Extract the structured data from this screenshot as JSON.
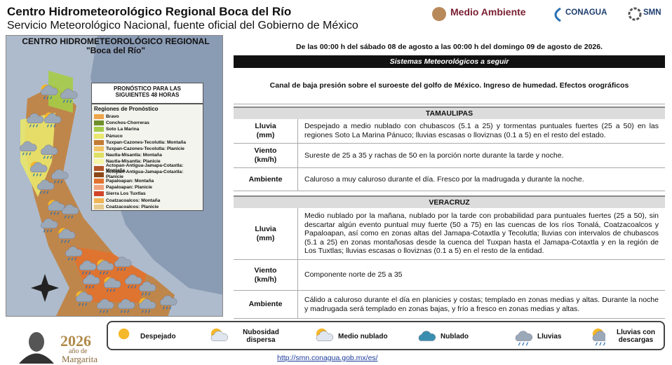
{
  "header": {
    "title": "Centro Hidrometeorológico Regional Boca del Río",
    "subtitle": "Servicio Meteorológico Nacional, fuente oficial del Gobierno de México",
    "logos": [
      "Medio Ambiente",
      "CONAGUA",
      "SMN"
    ]
  },
  "map": {
    "title": "CENTRO HIDROMETEOROLÓGICO REGIONAL",
    "subtitle": "\"Boca del Río\"",
    "forecast_box": "PRONÓSTICO PARA LAS SIGUIENTES 48 HORAS",
    "regions_heading": "Regiones de Pronóstico",
    "regions": [
      {
        "name": "Bravo",
        "color": "#eea64a"
      },
      {
        "name": "Conchos-Chorreras",
        "color": "#6f8f2a"
      },
      {
        "name": "Soto La Marina",
        "color": "#a6cc48"
      },
      {
        "name": "Pánuco",
        "color": "#e9e76c"
      },
      {
        "name": "Tuxpan-Cazones-Tecolutla: Montaña",
        "color": "#c27c34"
      },
      {
        "name": "Tuxpan-Cazones-Tecolutla: Planicie",
        "color": "#f2c464"
      },
      {
        "name": "Nautla-Misantla: Montaña",
        "color": "#dfe062"
      },
      {
        "name": "Nautla-Misantla: Planicie",
        "color": "#f7f6a6"
      },
      {
        "name": "Actopan-Antigua-Jamapa-Cotaxtla: Montaña",
        "color": "#b3552a"
      },
      {
        "name": "Actopan-Antigua-Jamapa-Cotaxtla: Planicie",
        "color": "#8c4718"
      },
      {
        "name": "Papaloapan: Montaña",
        "color": "#e2722e"
      },
      {
        "name": "Papaloapan: Planicie",
        "color": "#f1a47e"
      },
      {
        "name": "Sierra Los Tuxtlas",
        "color": "#d2452a"
      },
      {
        "name": "Coatzacoalcos: Montaña",
        "color": "#efb454"
      },
      {
        "name": "Coatzacoalcos: Planicie",
        "color": "#e6c98c"
      }
    ]
  },
  "period": "De las 00:00 h del sábado 08 de agosto a las 00:00 h del domingo 09 de agosto de 2026.",
  "systems": {
    "heading": "Sistemas Meteorológicos a seguir",
    "text": "Canal de baja presión sobre el suroeste del golfo de México. Ingreso de humedad. Efectos orográficos"
  },
  "states": [
    {
      "name": "TAMAULIPAS",
      "rows": [
        {
          "label": "Lluvia",
          "unit": "(mm)",
          "text": "Despejado a medio nublado con chubascos (5.1 a 25) y tormentas puntuales fuertes (25 a 50) en las regiones Soto La Marina Pánuco; lluvias escasas o lloviznas (0.1 a 5) en el resto del estado."
        },
        {
          "label": "Viento",
          "unit": "(km/h)",
          "text": "Sureste de 25 a 35 y rachas de 50 en la porción norte durante la tarde y noche."
        },
        {
          "label": "Ambiente",
          "text": "Caluroso a muy caluroso durante el día. Fresco por la madrugada y durante la noche."
        }
      ]
    },
    {
      "name": "VERACRUZ",
      "rows": [
        {
          "label": "Lluvia",
          "unit": "(mm)",
          "text": "Medio nublado por la mañana, nublado por la tarde con probabilidad para puntuales fuertes (25 a 50), sin descartar algún evento puntual muy fuerte (50 a 75) en las cuencas de los ríos Tonalá, Coatzacoalcos y Papaloapan, así como en zonas altas del Jamapa-Cotaxtla y Tecolutla; lluvias con intervalos de chubascos (5.1 a 25) en zonas montañosas desde la cuenca del Tuxpan hasta el Jamapa-Cotaxtla y en la región de Los Tuxtlas; lluvias escasas o lloviznas (0.1 a 5) en el resto de la entidad."
        },
        {
          "label": "Viento",
          "unit": "(km/h)",
          "text": "Componente norte de 25 a 35"
        },
        {
          "label": "Ambiente",
          "text": "Cálido a caluroso durante el día en planicies y costas; templado en zonas medias y altas. Durante la noche y madrugada será templado en zonas bajas, y frío a fresco en zonas medias y altas."
        }
      ]
    }
  ],
  "legend": [
    "Despejado",
    "Nubosidad dispersa",
    "Medio nublado",
    "Nublado",
    "Lluvias",
    "Lluvias con descargas"
  ],
  "footer": {
    "year": "2026",
    "line1": "año de",
    "line2": "Margarita",
    "url": "http://smn.conagua.gob.mx/es/"
  }
}
